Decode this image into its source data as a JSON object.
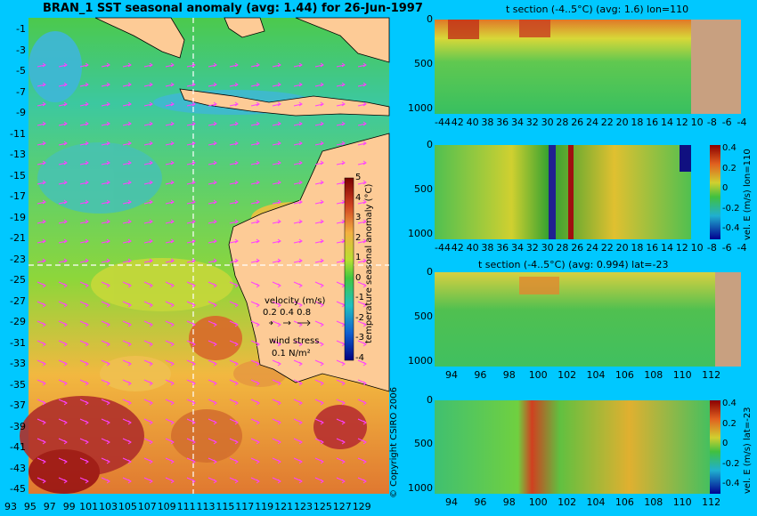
{
  "map": {
    "title": "BRAN_1 SST seasonal anomaly (avg: 1.44) for 26-Jun-1997",
    "lat_labels": [
      "-1",
      "-3",
      "-5",
      "-7",
      "-9",
      "-11",
      "-13",
      "-15",
      "-17",
      "-19",
      "-21",
      "-23",
      "-25",
      "-27",
      "-29",
      "-31",
      "-33",
      "-35",
      "-37",
      "-39",
      "-41",
      "-43",
      "-45"
    ],
    "lon_labels": [
      "93",
      "95",
      "97",
      "99",
      "101",
      "103",
      "105",
      "107",
      "109",
      "111",
      "113",
      "115",
      "117",
      "119",
      "121",
      "123",
      "125",
      "127",
      "129"
    ],
    "colorbar_label": "temperature seasonal anomaly (°C)",
    "colorbar_ticks": [
      "5",
      "4",
      "3",
      "2",
      "1",
      "0",
      "-1",
      "-2",
      "-3",
      "-4"
    ],
    "velocity_label": "velocity (m/s)",
    "velocity_scale": "0.2 0.4 0.8",
    "wind_label": "wind stress",
    "wind_scale": "0.1 N/m²",
    "copyright": "© Copyright CSIRO 2006",
    "colors": {
      "land": "#fdcb96",
      "ocean_bg": "#00c8ff",
      "vector": "#ff40ff",
      "section_line": "#ffffff"
    }
  },
  "panels": [
    {
      "title": "t section (-4..5°C) (avg: 1.6) lon=110",
      "x_ticks": [
        "-44",
        "42",
        "40",
        "38",
        "36",
        "34",
        "32",
        "30",
        "28",
        "26",
        "24",
        "22",
        "20",
        "18",
        "16",
        "14",
        "12",
        "10",
        "-8",
        "-6",
        "-4"
      ],
      "y_ticks": [
        "0",
        "500",
        "1000"
      ]
    },
    {
      "title": "",
      "x_ticks": [
        "-44",
        "42",
        "40",
        "38",
        "36",
        "34",
        "32",
        "30",
        "28",
        "26",
        "24",
        "22",
        "20",
        "18",
        "16",
        "14",
        "12",
        "10",
        "-8",
        "-6",
        "-4"
      ],
      "y_ticks": [
        "0",
        "500",
        "1000"
      ],
      "cbar_label": "vel. E (m/s) lon=110",
      "cbar_ticks": [
        "0.4",
        "0.2",
        "0",
        "-0.2",
        "-0.4"
      ]
    },
    {
      "title": "t section (-4..5°C) (avg: 0.994) lat=-23",
      "x_ticks": [
        "94",
        "96",
        "98",
        "100",
        "102",
        "104",
        "106",
        "108",
        "110",
        "112"
      ],
      "y_ticks": [
        "0",
        "500",
        "1000"
      ]
    },
    {
      "title": "",
      "x_ticks": [
        "94",
        "96",
        "98",
        "100",
        "102",
        "104",
        "106",
        "108",
        "110",
        "112"
      ],
      "y_ticks": [
        "0",
        "500",
        "1000"
      ],
      "cbar_label": "vel. E (m/s) lat=-23",
      "cbar_ticks": [
        "0.4",
        "0.2",
        "0",
        "-0.2",
        "-0.4"
      ]
    }
  ],
  "chart_data": [
    {
      "type": "heatmap",
      "title": "BRAN_1 SST seasonal anomaly (avg: 1.44) for 26-Jun-1997",
      "xlabel": "",
      "ylabel": "",
      "xlim": [
        93,
        130
      ],
      "ylim": [
        -45,
        0
      ],
      "colorbar_range": [
        -4,
        5
      ],
      "section_lon": 110,
      "section_lat": -23
    },
    {
      "type": "heatmap",
      "title": "t section (-4..5°C) (avg: 1.6) lon=110",
      "xlim": [
        -45,
        -3
      ],
      "ylim": [
        1050,
        0
      ],
      "colorbar_range": [
        -4,
        5
      ]
    },
    {
      "type": "heatmap",
      "title": "",
      "xlim": [
        -45,
        -3
      ],
      "ylim": [
        1050,
        0
      ],
      "colorbar_range": [
        -0.4,
        0.4
      ],
      "colorbar_label": "vel. E (m/s) lon=110"
    },
    {
      "type": "heatmap",
      "title": "t section (-4..5°C) (avg: 0.994) lat=-23",
      "xlim": [
        93,
        114
      ],
      "ylim": [
        1050,
        0
      ],
      "colorbar_range": [
        -4,
        5
      ]
    },
    {
      "type": "heatmap",
      "title": "",
      "xlim": [
        93,
        114
      ],
      "ylim": [
        1050,
        0
      ],
      "colorbar_range": [
        -0.4,
        0.4
      ],
      "colorbar_label": "vel. E (m/s) lat=-23"
    }
  ]
}
